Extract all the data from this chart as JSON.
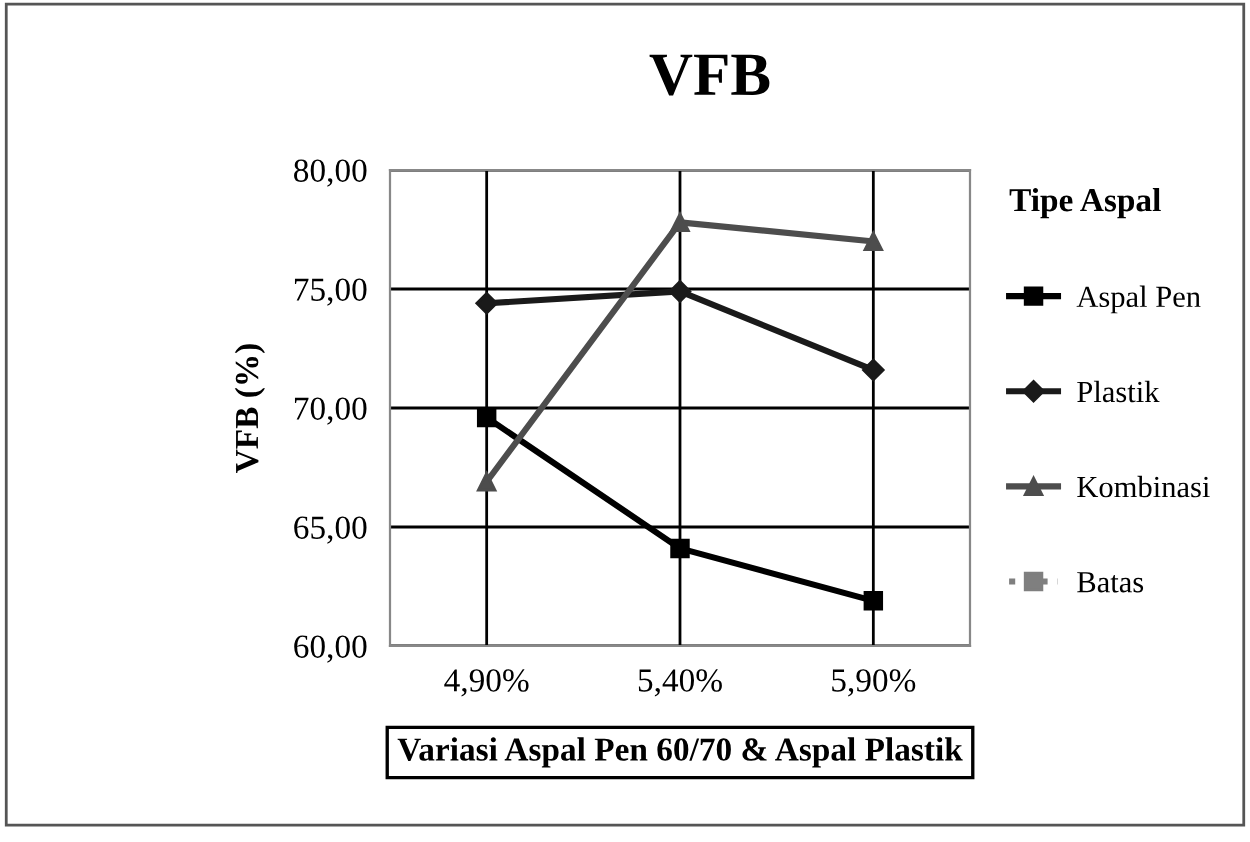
{
  "chart_data": {
    "type": "line",
    "title": "VFB",
    "xlabel": "Variasi Aspal Pen 60/70 & Aspal Plastik",
    "ylabel": "VFB (%)",
    "legend_title": "Tipe Aspal",
    "categories": [
      "4,90%",
      "5,40%",
      "5,90%"
    ],
    "series": [
      {
        "name": "Aspal Pen",
        "color": "#000000",
        "marker": "square",
        "line_style": "solid",
        "values": [
          69.6,
          64.1,
          61.9
        ]
      },
      {
        "name": "Plastik",
        "color": "#1a1a1a",
        "marker": "diamond",
        "line_style": "solid",
        "values": [
          74.4,
          74.9,
          71.6
        ]
      },
      {
        "name": "Kombinasi",
        "color": "#4d4d4d",
        "marker": "triangle",
        "line_style": "solid",
        "values": [
          66.9,
          77.8,
          77.0
        ]
      },
      {
        "name": "Batas",
        "color": "#7f7f7f",
        "marker": "square",
        "line_style": "dotted",
        "values": [
          null,
          null,
          null
        ]
      }
    ],
    "ylim": [
      60,
      80
    ],
    "yticks": [
      {
        "value": 60,
        "label": "60,00"
      },
      {
        "value": 65,
        "label": "65,00"
      },
      {
        "value": 70,
        "label": "70,00"
      },
      {
        "value": 75,
        "label": "75,00"
      },
      {
        "value": 80,
        "label": "80,00"
      }
    ],
    "grid": true,
    "legend": "right"
  }
}
